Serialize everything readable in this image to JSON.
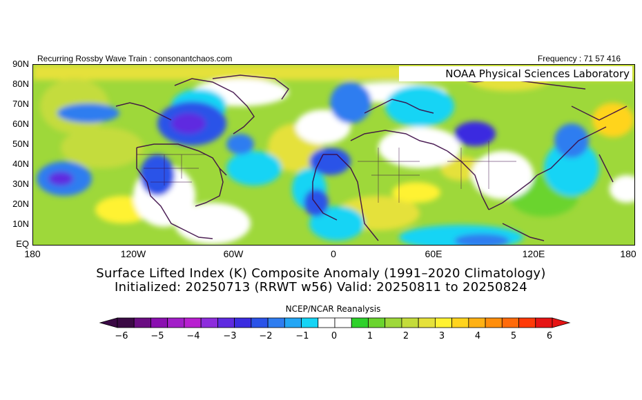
{
  "header": {
    "left_text": "Recurring Rossby Wave Train : consonantchaos.com",
    "right_text": "Frequency : 71 57 416"
  },
  "lab_label": "NOAA Physical Sciences Laboratory",
  "axes": {
    "y_ticks": [
      "90N",
      "80N",
      "70N",
      "60N",
      "50N",
      "40N",
      "30N",
      "20N",
      "10N",
      "EQ"
    ],
    "x_ticks": [
      "180",
      "120W",
      "60W",
      "0",
      "60E",
      "120E",
      "180"
    ]
  },
  "titles": {
    "line1": "Surface Lifted Index (K) Composite Anomaly (1991–2020 Climatology)",
    "line2": "Initialized: 20250713 (RRWT w56) Valid: 20250811 to 20250824"
  },
  "colorbar": {
    "title": "NCEP/NCAR Reanalysis",
    "ticks": [
      "−6",
      "−5",
      "−4",
      "−3",
      "−2",
      "−1",
      "0",
      "1",
      "2",
      "3",
      "4",
      "5",
      "6"
    ],
    "colors": [
      "#3b0a45",
      "#6a0d82",
      "#8a0fb0",
      "#a21ec8",
      "#b81fd0",
      "#8d2cdc",
      "#5e2ae0",
      "#3b2ce0",
      "#2a52e8",
      "#2f7df0",
      "#23a6f5",
      "#14d4f5",
      "#ffffff",
      "#ffffff",
      "#2ed12a",
      "#6ad42e",
      "#9ed83a",
      "#c4dc3c",
      "#e5e13a",
      "#fff232",
      "#ffd41e",
      "#ffb114",
      "#ff8e0c",
      "#ff6a0a",
      "#ff3a08",
      "#e61414"
    ]
  }
}
